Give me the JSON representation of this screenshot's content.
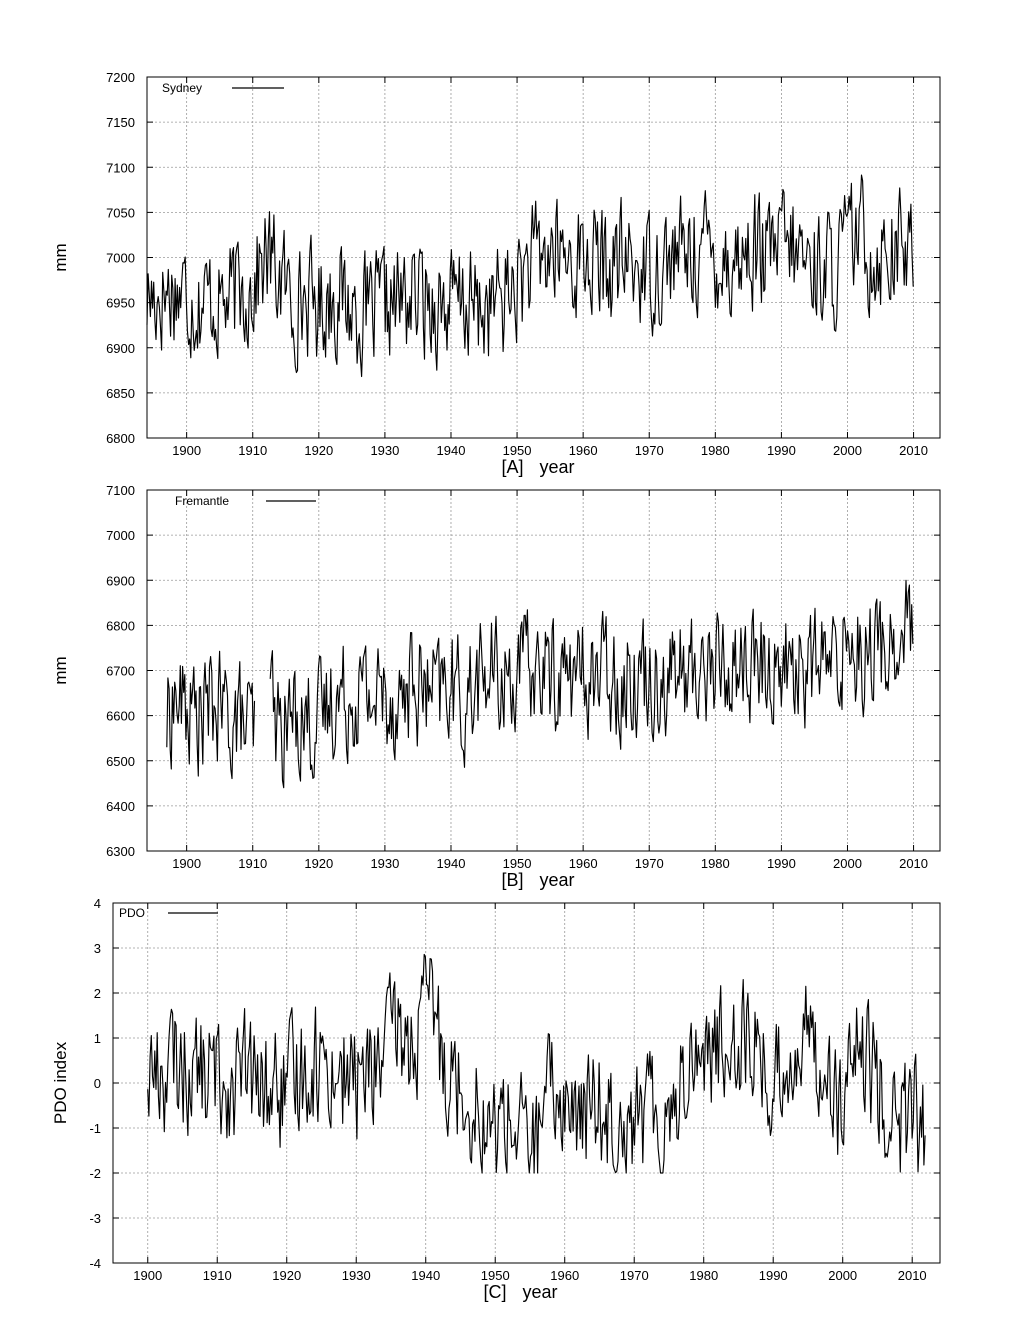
{
  "chart_data": [
    {
      "type": "line",
      "panel": "[A]",
      "xlabel": "year",
      "ylabel": "mm",
      "xlim": [
        1894,
        2014
      ],
      "ylim": [
        6800,
        7200
      ],
      "xticks": [
        1900,
        1910,
        1920,
        1930,
        1940,
        1950,
        1960,
        1970,
        1980,
        1990,
        2000,
        2010
      ],
      "yticks": [
        6800,
        6850,
        6900,
        6950,
        7000,
        7050,
        7100,
        7150,
        7200
      ],
      "grid": true,
      "legend_position": "top-left",
      "series": [
        {
          "name": "Sydney",
          "x": [
            1894,
            1896,
            1898,
            1900,
            1902,
            1904,
            1906,
            1908,
            1910,
            1912,
            1914,
            1916,
            1918,
            1920,
            1922,
            1924,
            1926,
            1928,
            1930,
            1932,
            1934,
            1936,
            1938,
            1940,
            1942,
            1944,
            1946,
            1948,
            1950,
            1952,
            1954,
            1956,
            1958,
            1960,
            1962,
            1964,
            1966,
            1968,
            1970,
            1972,
            1974,
            1976,
            1978,
            1980,
            1982,
            1984,
            1986,
            1988,
            1990,
            1992,
            1994,
            1996,
            1998,
            2000,
            2002,
            2004,
            2006,
            2008,
            2010
          ],
          "values": [
            6955,
            6960,
            6965,
            6960,
            6950,
            6955,
            6950,
            6960,
            6970,
            7000,
            6980,
            6950,
            6955,
            6945,
            6960,
            6950,
            6940,
            6935,
            6945,
            6950,
            6955,
            6955,
            6950,
            6945,
            6950,
            6940,
            6945,
            6955,
            6970,
            6990,
            7000,
            7005,
            6995,
            7000,
            6990,
            6985,
            6995,
            6990,
            6985,
            6995,
            7000,
            7005,
            7010,
            7005,
            6995,
            7000,
            7010,
            6995,
            7015,
            7005,
            6995,
            6990,
            6985,
            7015,
            7025,
            7000,
            7015,
            7010,
            7000
          ]
        }
      ]
    },
    {
      "type": "line",
      "panel": "[B]",
      "xlabel": "year",
      "ylabel": "mm",
      "xlim": [
        1894,
        2014
      ],
      "ylim": [
        6300,
        7100
      ],
      "xticks": [
        1900,
        1910,
        1920,
        1930,
        1940,
        1950,
        1960,
        1970,
        1980,
        1990,
        2000,
        2010
      ],
      "yticks": [
        6300,
        6400,
        6500,
        6600,
        6700,
        6800,
        6900,
        7000,
        7100
      ],
      "grid": true,
      "legend_position": "top-left",
      "series": [
        {
          "name": "Fremantle",
          "x": [
            1897,
            1898,
            1900,
            1902,
            1904,
            1906,
            1908,
            1910,
            1913,
            1914,
            1916,
            1918,
            1920,
            1922,
            1924,
            1926,
            1928,
            1930,
            1932,
            1934,
            1936,
            1938,
            1940,
            1942,
            1944,
            1946,
            1948,
            1950,
            1952,
            1954,
            1956,
            1958,
            1960,
            1962,
            1964,
            1966,
            1968,
            1970,
            1972,
            1974,
            1976,
            1978,
            1980,
            1982,
            1984,
            1986,
            1988,
            1990,
            1992,
            1994,
            1996,
            1998,
            2000,
            2002,
            2004,
            2006,
            2008,
            2010
          ],
          "values": [
            6580,
            6640,
            6610,
            6600,
            6620,
            6600,
            6590,
            6560,
            6640,
            6560,
            6600,
            6600,
            6580,
            6640,
            6640,
            6660,
            6640,
            6650,
            6630,
            6670,
            6650,
            6640,
            6670,
            6620,
            6680,
            6690,
            6680,
            6700,
            6700,
            6700,
            6690,
            6690,
            6690,
            6690,
            6700,
            6680,
            6700,
            6690,
            6690,
            6700,
            6680,
            6710,
            6710,
            6700,
            6720,
            6700,
            6700,
            6720,
            6710,
            6700,
            6720,
            6700,
            6780,
            6750,
            6740,
            6750,
            6760,
            6800
          ]
        }
      ]
    },
    {
      "type": "line",
      "panel": "[C]",
      "xlabel": "year",
      "ylabel": "PDO index",
      "xlim": [
        1895,
        2014
      ],
      "ylim": [
        -4,
        4
      ],
      "xticks": [
        1900,
        1910,
        1920,
        1930,
        1940,
        1950,
        1960,
        1970,
        1980,
        1990,
        2000,
        2010
      ],
      "yticks": [
        -4,
        -3,
        -2,
        -1,
        0,
        1,
        2,
        3,
        4
      ],
      "grid": true,
      "legend_position": "top-left",
      "series": [
        {
          "name": "PDO",
          "x": [
            1900,
            1902,
            1904,
            1906,
            1908,
            1910,
            1912,
            1914,
            1916,
            1918,
            1920,
            1922,
            1924,
            1926,
            1928,
            1930,
            1932,
            1934,
            1936,
            1938,
            1940,
            1941,
            1942,
            1944,
            1946,
            1948,
            1949,
            1950,
            1952,
            1954,
            1956,
            1958,
            1960,
            1962,
            1964,
            1966,
            1968,
            1970,
            1972,
            1974,
            1976,
            1978,
            1980,
            1982,
            1984,
            1986,
            1988,
            1990,
            1992,
            1994,
            1996,
            1998,
            2000,
            2002,
            2004,
            2006,
            2008,
            2010,
            2012
          ],
          "values": [
            0.3,
            0.2,
            0.4,
            0.3,
            0.2,
            0.1,
            0.0,
            0.2,
            -0.2,
            -0.1,
            -0.3,
            0.3,
            0.5,
            0.4,
            0.2,
            0.0,
            0.3,
            0.6,
            1.2,
            0.7,
            1.5,
            2.0,
            0.8,
            0.2,
            -0.2,
            -0.6,
            -1.3,
            -1.0,
            -0.7,
            -1.2,
            -1.4,
            -0.2,
            -0.3,
            -1.0,
            -0.4,
            -0.6,
            -0.5,
            -0.9,
            -0.6,
            -0.8,
            -0.3,
            0.6,
            0.8,
            0.6,
            1.3,
            1.0,
            0.7,
            -0.3,
            0.6,
            0.8,
            1.0,
            0.2,
            -0.8,
            0.6,
            0.2,
            -0.3,
            -1.0,
            -0.6,
            -1.2
          ]
        }
      ]
    }
  ]
}
